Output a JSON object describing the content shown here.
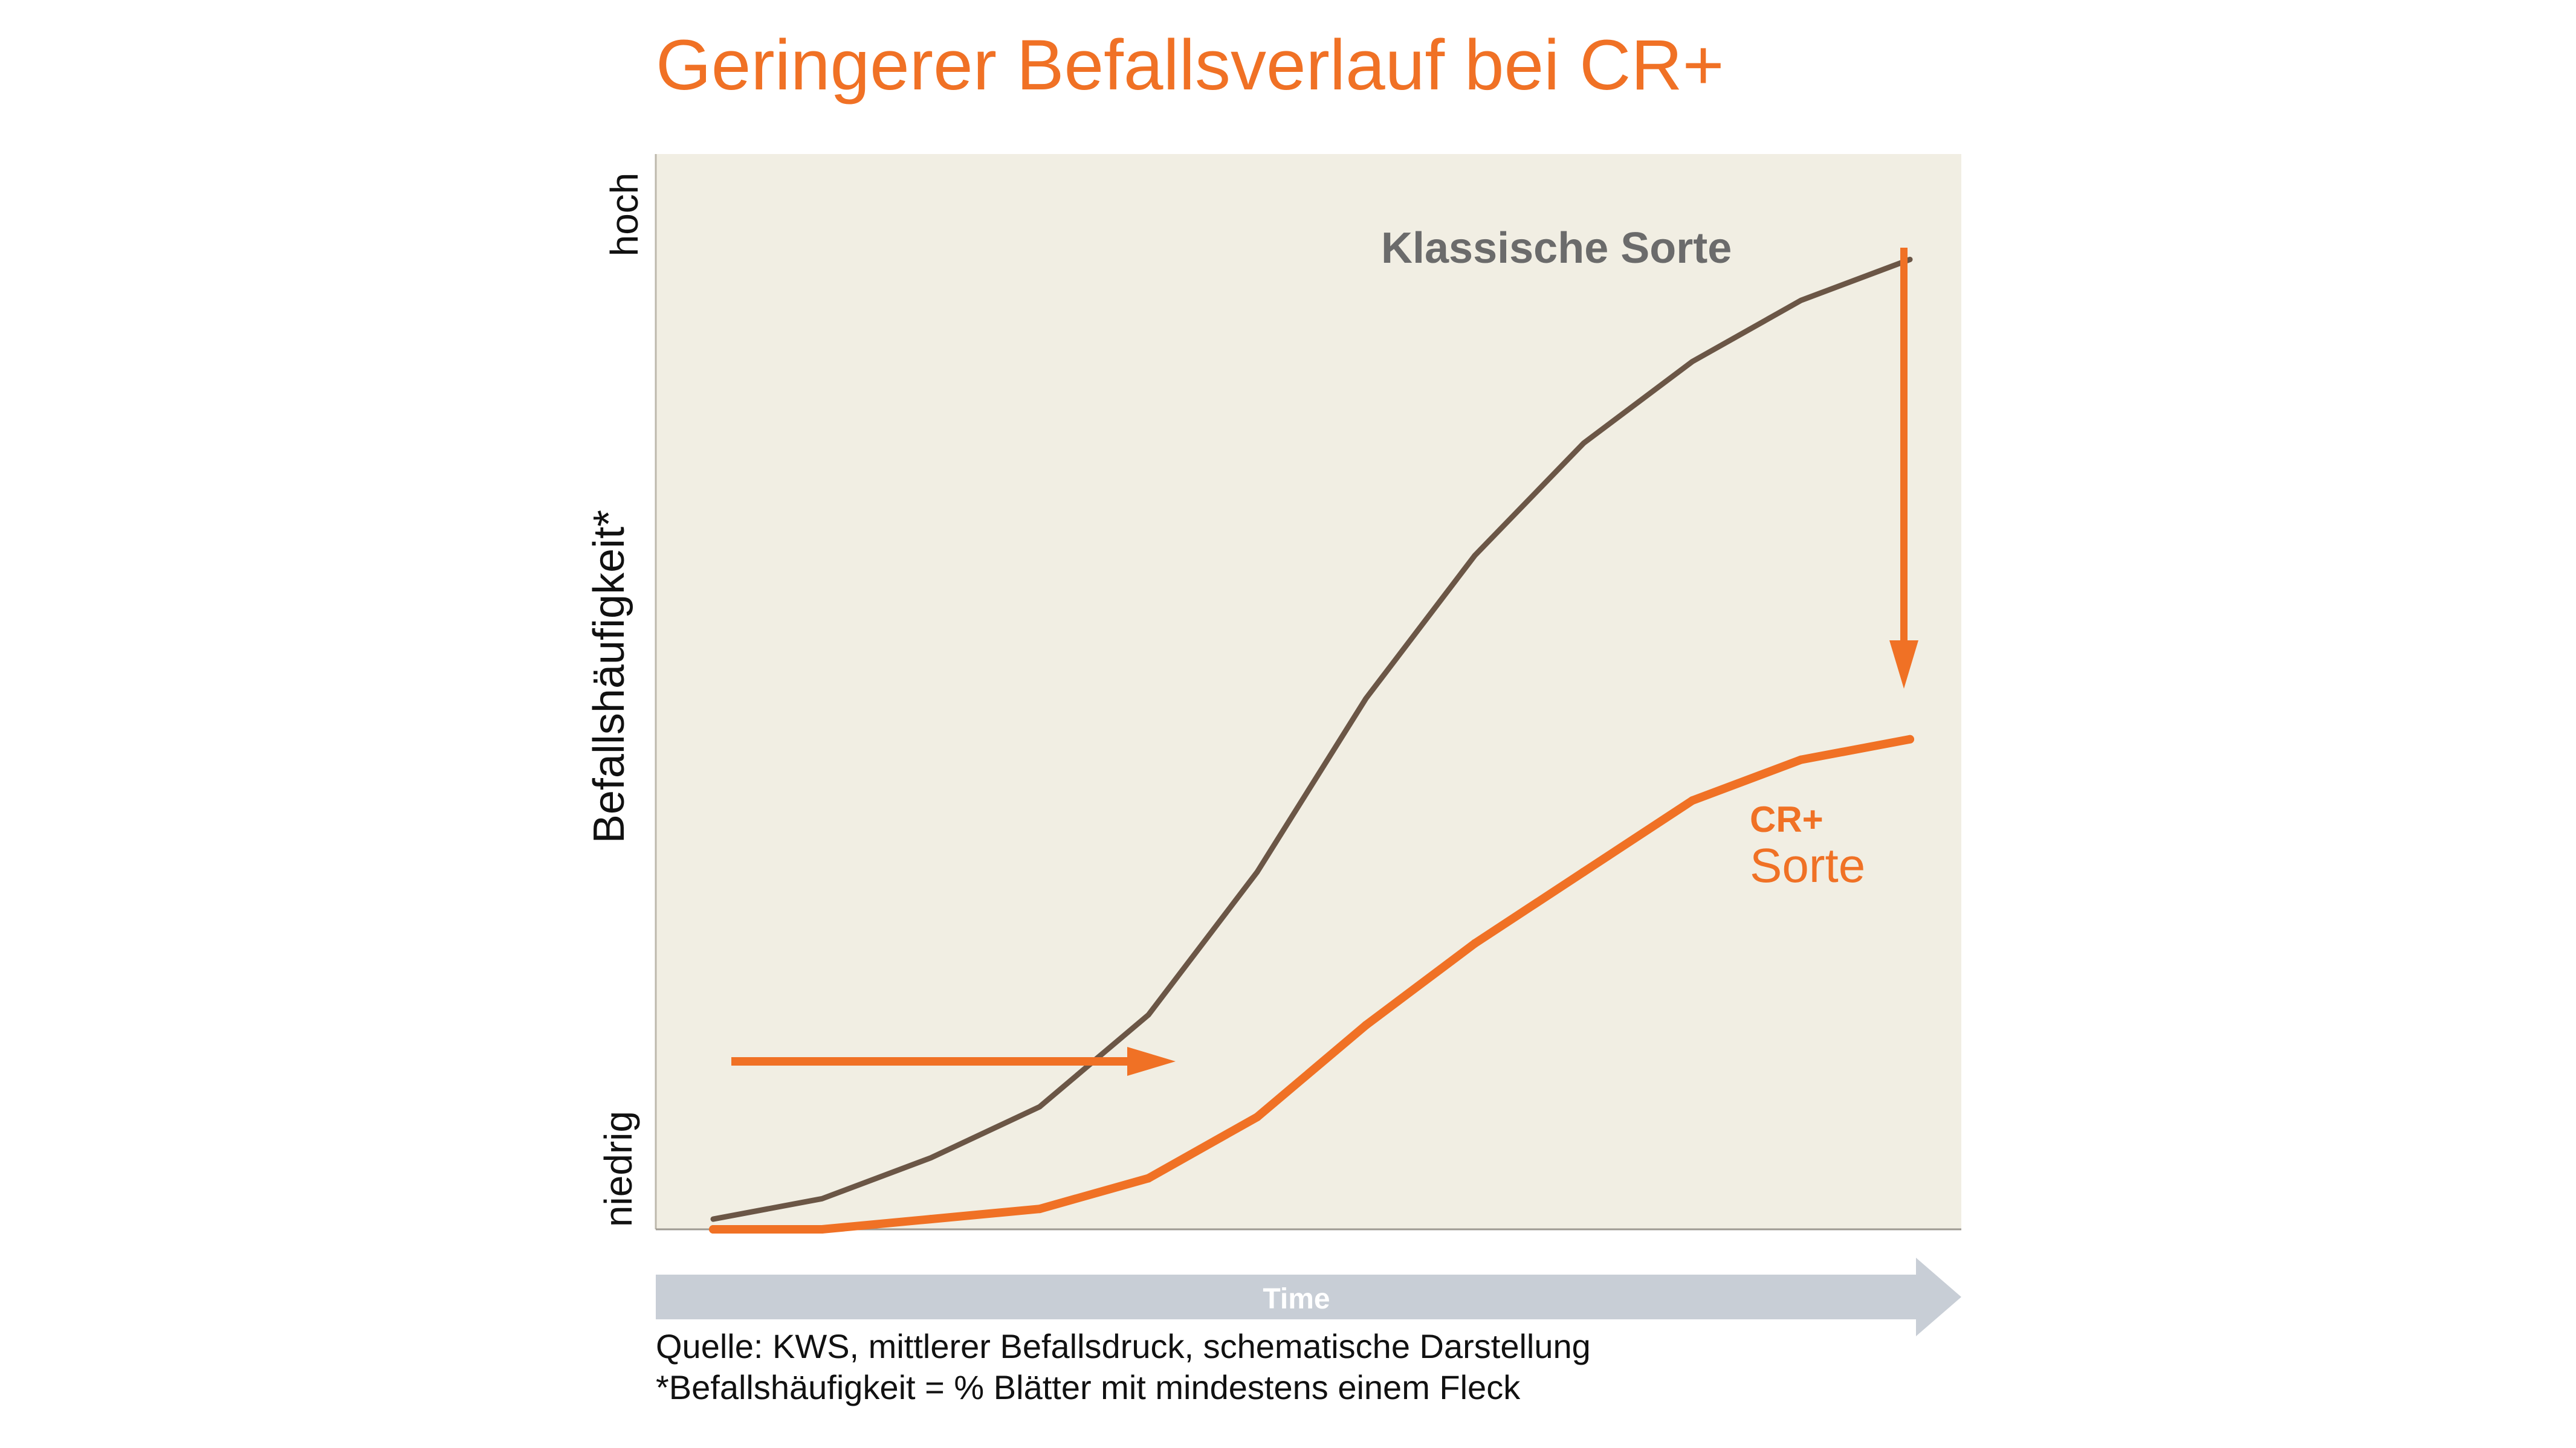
{
  "chart_data": {
    "type": "line",
    "title": "Geringerer Befallsverlauf bei CR+",
    "xlabel": "Time",
    "ylabel": "Befallshäufigkeit*",
    "y_tick_high": "hoch",
    "y_tick_low": "niedrig",
    "ylim": [
      0,
      100
    ],
    "x": [
      1,
      2,
      3,
      4,
      5,
      6,
      7,
      8,
      9,
      10,
      11,
      12
    ],
    "series": [
      {
        "name": "Klassische Sorte",
        "color": "#6b5646",
        "values": [
          1,
          3,
          7,
          12,
          21,
          35,
          52,
          66,
          77,
          85,
          91,
          95
        ]
      },
      {
        "name_line1": "CR+",
        "name_line2": "Sorte",
        "color": "#f07125",
        "values": [
          0,
          0,
          1,
          2,
          5,
          11,
          20,
          28,
          35,
          42,
          46,
          48
        ]
      }
    ],
    "grid": false,
    "plot_background": "#f1eee3",
    "annotations": [
      {
        "type": "arrow",
        "direction": "right",
        "color": "#f07125",
        "meaning": "delay of infection onset"
      },
      {
        "type": "arrow",
        "direction": "down",
        "color": "#f07125",
        "meaning": "reduction of infection level"
      }
    ]
  },
  "footnotes": {
    "source": "Quelle: KWS, mittlerer Befallsdruck, schematische Darstellung",
    "definition": "*Befallshäufigkeit = % Blätter mit mindestens einem Fleck"
  },
  "colors": {
    "accent": "#f07125",
    "time_arrow": "#c8ced6"
  }
}
